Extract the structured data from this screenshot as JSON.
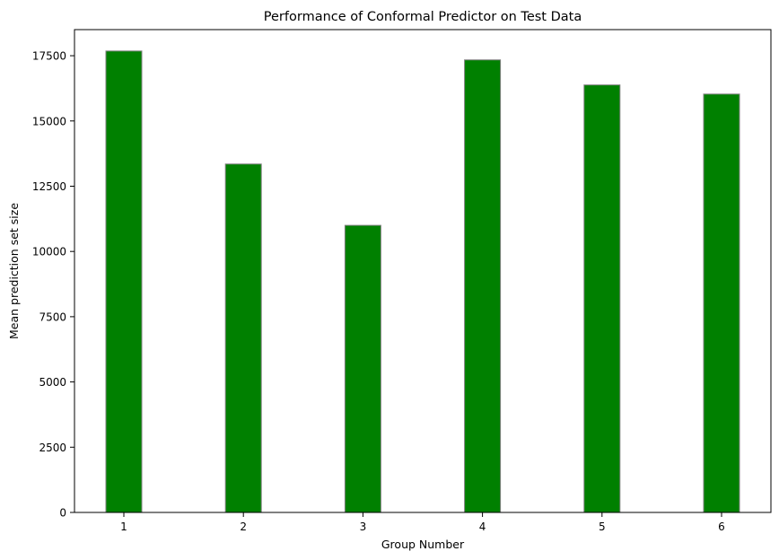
{
  "chart_data": {
    "type": "bar",
    "title": "Performance of Conformal Predictor on Test Data",
    "xlabel": "Group Number",
    "ylabel": "Mean prediction set size",
    "categories": [
      "1",
      "2",
      "3",
      "4",
      "5",
      "6"
    ],
    "values": [
      17680,
      13350,
      11000,
      17340,
      16380,
      16030
    ],
    "ylim": [
      0,
      18500
    ],
    "yticks": [
      0,
      2500,
      5000,
      7500,
      10000,
      12500,
      15000,
      17500
    ],
    "ytick_labels": [
      "0",
      "2500",
      "5000",
      "7500",
      "10000",
      "12500",
      "15000",
      "17500"
    ],
    "bar_color": "#008000",
    "bar_edge_color": "#808080",
    "grid": false,
    "legend": false
  }
}
